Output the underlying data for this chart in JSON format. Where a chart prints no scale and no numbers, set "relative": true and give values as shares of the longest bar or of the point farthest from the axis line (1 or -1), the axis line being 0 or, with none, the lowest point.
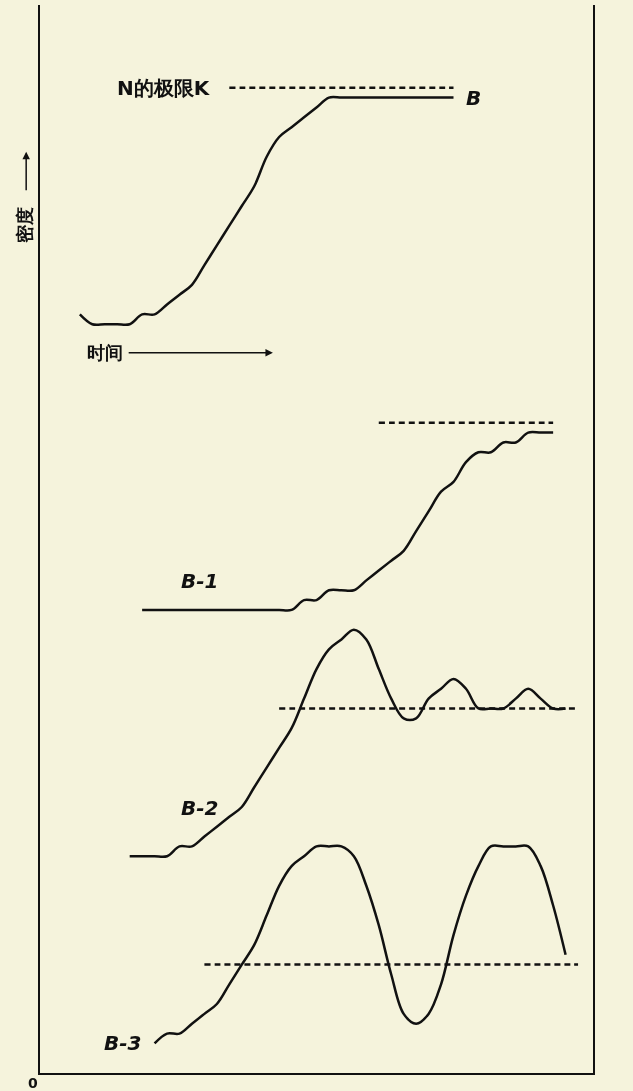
{
  "chart_data": {
    "type": "line",
    "relative": true,
    "xlabel": "时间",
    "ylabel": "密度",
    "annotations": [
      "0"
    ],
    "categories": [
      null,
      null,
      null,
      null,
      null,
      null,
      null,
      null,
      null,
      null,
      null,
      null,
      null,
      null,
      null,
      null,
      null,
      null,
      null,
      null,
      null,
      null,
      null,
      null,
      null,
      null,
      null,
      null,
      null,
      null,
      null,
      null,
      null,
      null,
      null,
      null,
      null,
      null,
      null,
      null,
      null,
      null,
      null
    ],
    "series": [
      {
        "name": "B",
        "color": "#111111",
        "line_style": "solid",
        "values": [
          null,
          null,
          0.77,
          0.76,
          0.76,
          0.76,
          0.76,
          0.77,
          0.77,
          0.78,
          0.79,
          0.8,
          0.82,
          0.84,
          0.86,
          0.88,
          0.9,
          0.93,
          0.95,
          0.96,
          0.97,
          0.98,
          0.99,
          0.99,
          0.99,
          0.99,
          0.99,
          0.99,
          0.99,
          0.99,
          0.99,
          0.99,
          0.99,
          null,
          null,
          null,
          null,
          null,
          null,
          null,
          null,
          null,
          null
        ]
      },
      {
        "name": "N的极限K",
        "color": "#111111",
        "line_style": "dashed",
        "values": [
          null,
          null,
          null,
          null,
          null,
          null,
          null,
          null,
          null,
          null,
          null,
          null,
          null,
          null,
          1.0,
          1.0,
          1.0,
          1.0,
          1.0,
          1.0,
          1.0,
          1.0,
          1.0,
          1.0,
          1.0,
          1.0,
          1.0,
          1.0,
          1.0,
          1.0,
          1.0,
          1.0,
          1.0,
          null,
          null,
          null,
          null,
          null,
          null,
          null,
          null,
          null,
          null
        ]
      },
      {
        "name": "B-1",
        "color": "#111111",
        "line_style": "solid",
        "values": [
          null,
          null,
          null,
          null,
          null,
          null,
          null,
          0.47,
          0.47,
          0.47,
          0.47,
          0.47,
          0.47,
          0.47,
          0.47,
          0.47,
          0.47,
          0.47,
          0.47,
          0.47,
          0.48,
          0.48,
          0.49,
          0.49,
          0.49,
          0.5,
          0.51,
          0.52,
          0.53,
          0.55,
          0.57,
          0.59,
          0.6,
          0.62,
          0.63,
          0.63,
          0.64,
          0.64,
          0.65,
          0.65,
          0.65,
          null,
          null
        ]
      },
      {
        "color": "#111111",
        "line_style": "dashed",
        "values": [
          null,
          null,
          null,
          null,
          null,
          null,
          null,
          null,
          null,
          null,
          null,
          null,
          null,
          null,
          null,
          null,
          null,
          null,
          null,
          null,
          null,
          null,
          null,
          null,
          null,
          null,
          0.66,
          0.66,
          0.66,
          0.66,
          0.66,
          0.66,
          0.66,
          0.66,
          0.66,
          0.66,
          0.66,
          0.66,
          0.66,
          0.66,
          0.66,
          null,
          null
        ]
      },
      {
        "name": "B-2",
        "color": "#111111",
        "line_style": "solid",
        "values": [
          null,
          null,
          null,
          null,
          null,
          null,
          0.22,
          0.22,
          0.22,
          0.22,
          0.23,
          0.23,
          0.24,
          0.25,
          0.26,
          0.27,
          0.29,
          0.31,
          0.33,
          0.35,
          0.38,
          0.41,
          0.43,
          0.44,
          0.45,
          0.44,
          0.41,
          0.38,
          0.36,
          0.36,
          0.38,
          0.39,
          0.4,
          0.39,
          0.37,
          0.37,
          0.37,
          0.38,
          0.39,
          0.38,
          0.37,
          0.37,
          null
        ]
      },
      {
        "color": "#111111",
        "line_style": "dashed",
        "values": [
          null,
          null,
          null,
          null,
          null,
          null,
          null,
          null,
          null,
          null,
          null,
          null,
          null,
          null,
          null,
          null,
          null,
          null,
          0.37,
          0.37,
          0.37,
          0.37,
          0.37,
          0.37,
          0.37,
          0.37,
          0.37,
          0.37,
          0.37,
          0.37,
          0.37,
          0.37,
          0.37,
          0.37,
          0.37,
          0.37,
          0.37,
          0.37,
          0.37,
          0.37,
          0.37,
          0.37,
          0.37
        ]
      },
      {
        "name": "B-3",
        "color": "#111111",
        "line_style": "solid",
        "values": [
          null,
          null,
          null,
          null,
          null,
          null,
          null,
          null,
          0.03,
          0.04,
          0.04,
          0.05,
          0.06,
          0.07,
          0.09,
          0.11,
          0.13,
          0.16,
          0.19,
          0.21,
          0.22,
          0.23,
          0.23,
          0.23,
          0.22,
          0.19,
          0.15,
          0.1,
          0.06,
          0.05,
          0.06,
          0.09,
          0.14,
          0.18,
          0.21,
          0.23,
          0.23,
          0.23,
          0.23,
          0.21,
          0.17,
          0.12,
          null
        ]
      },
      {
        "color": "#111111",
        "line_style": "dashed",
        "values": [
          null,
          null,
          null,
          null,
          null,
          null,
          null,
          null,
          null,
          null,
          null,
          null,
          0.11,
          0.11,
          0.11,
          0.11,
          0.11,
          0.11,
          0.11,
          0.11,
          0.11,
          0.11,
          0.11,
          0.11,
          0.11,
          0.11,
          0.11,
          0.11,
          0.11,
          0.11,
          0.11,
          0.11,
          0.11,
          0.11,
          0.11,
          0.11,
          0.11,
          0.11,
          0.11,
          0.11,
          0.11,
          0.11,
          0.11
        ]
      }
    ],
    "legend": false,
    "grid": false,
    "marker": "none"
  }
}
